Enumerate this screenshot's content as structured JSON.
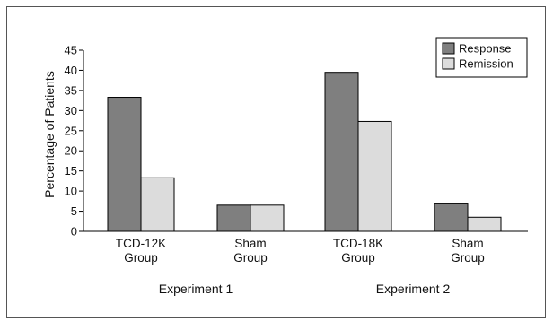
{
  "chart_data": {
    "type": "bar",
    "ylabel": "Percentage of Patients",
    "ylim": [
      0,
      45
    ],
    "yticks": [
      0,
      5,
      10,
      15,
      20,
      25,
      30,
      35,
      40,
      45
    ],
    "categories": [
      [
        "TCD-12K",
        "Group"
      ],
      [
        "Sham",
        "Group"
      ],
      [
        "TCD-18K",
        "Group"
      ],
      [
        "Sham",
        "Group"
      ]
    ],
    "groups": [
      {
        "label": "Experiment 1",
        "categories": [
          0,
          1
        ]
      },
      {
        "label": "Experiment 2",
        "categories": [
          2,
          3
        ]
      }
    ],
    "series": [
      {
        "name": "Response",
        "color": "#7f7f7f",
        "values": [
          33.3,
          6.5,
          39.5,
          7.0
        ]
      },
      {
        "name": "Remission",
        "color": "#dcdcdc",
        "values": [
          13.3,
          6.5,
          27.3,
          3.5
        ]
      }
    ],
    "legend_position": "top-right",
    "grid": false
  }
}
